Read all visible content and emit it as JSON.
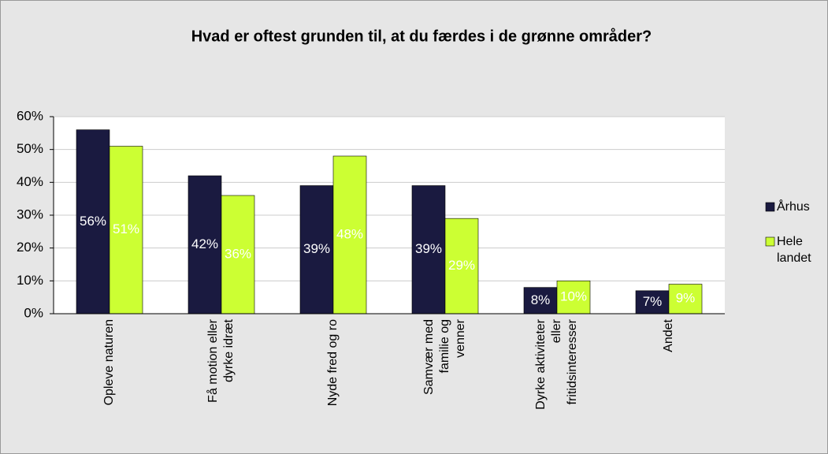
{
  "chart_data": {
    "type": "bar",
    "title": "Hvad er oftest grunden til, at du færdes i de grønne områder?",
    "categories": [
      "Opleve naturen",
      "Få motion eller\ndyrke idræt",
      "Nyde fred og ro",
      "Samvær med\nfamilie og\nvenner",
      "Dyrke aktiviteter\neller\nfritidsinteresser",
      "Andet"
    ],
    "series": [
      {
        "name": "Århus",
        "color": "#1a1a40",
        "values": [
          56,
          42,
          39,
          39,
          8,
          7
        ],
        "value_labels": [
          "56%",
          "42%",
          "39%",
          "39%",
          "8%",
          "7%"
        ]
      },
      {
        "name": "Hele\nlandet",
        "color": "#ccff33",
        "values": [
          51,
          36,
          48,
          29,
          10,
          9
        ],
        "value_labels": [
          "51%",
          "36%",
          "48%",
          "29%",
          "10%",
          "9%"
        ]
      }
    ],
    "ylim": [
      0,
      60
    ],
    "yticks": [
      {
        "value": 0,
        "label": "0%"
      },
      {
        "value": 10,
        "label": "10%"
      },
      {
        "value": 20,
        "label": "20%"
      },
      {
        "value": 30,
        "label": "30%"
      },
      {
        "value": 40,
        "label": "40%"
      },
      {
        "value": 50,
        "label": "50%"
      },
      {
        "value": 60,
        "label": "60%"
      }
    ],
    "grid": true,
    "legend": "right"
  }
}
